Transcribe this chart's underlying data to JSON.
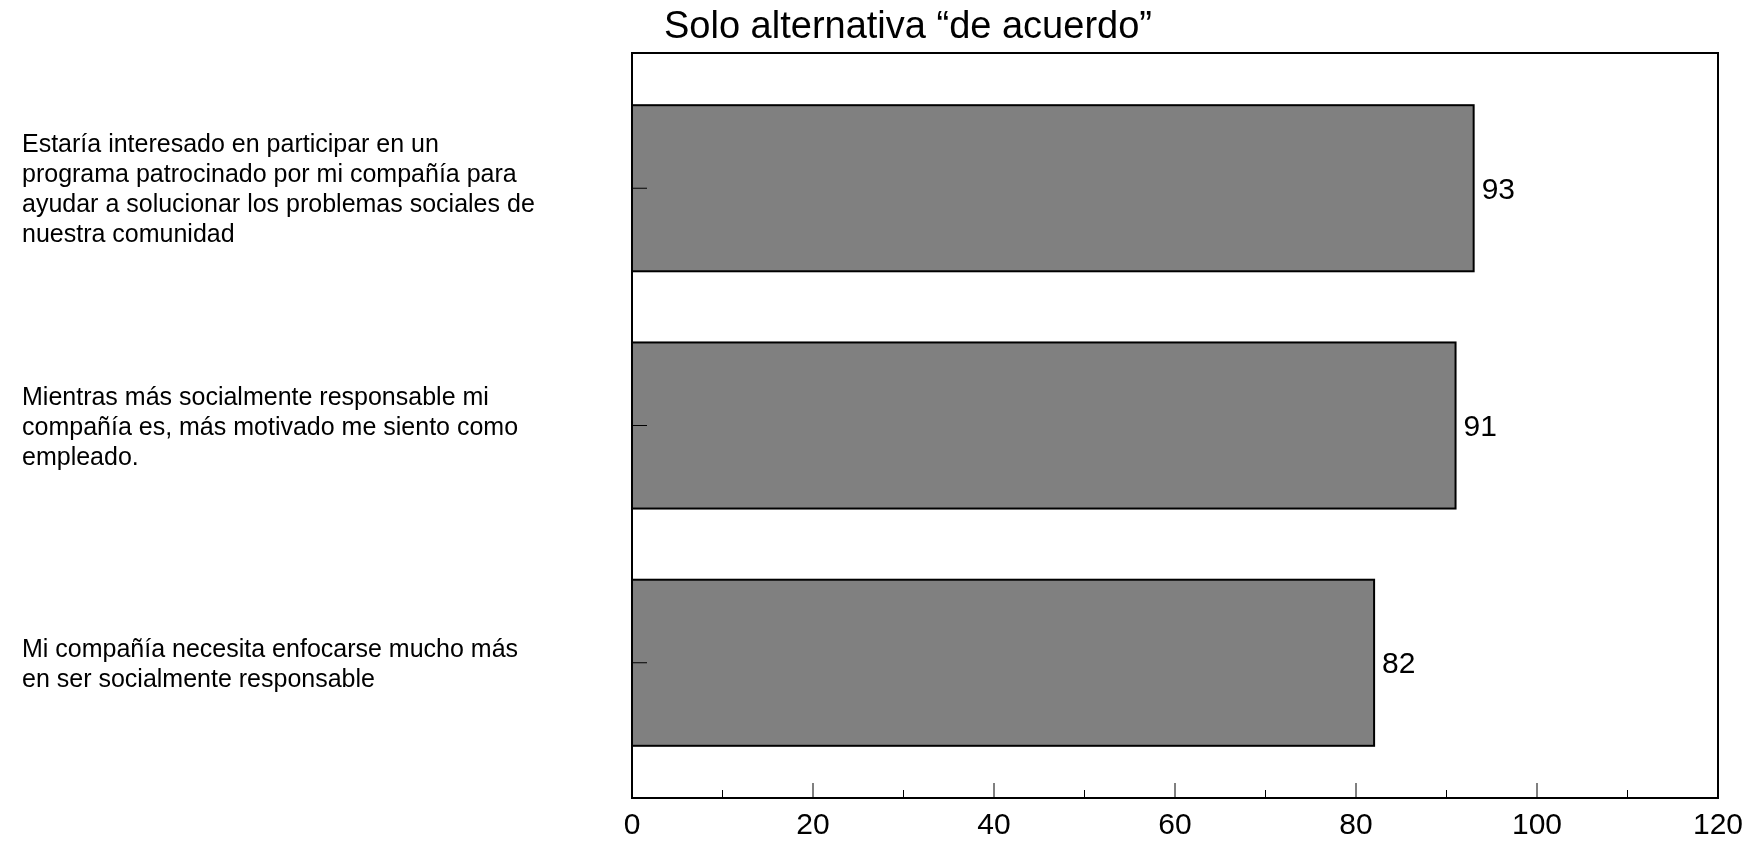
{
  "chart_data": {
    "type": "bar",
    "orientation": "horizontal",
    "title": "Solo alternativa “de acuerdo”",
    "categories": [
      "Estaría interesado en participar en un programa patrocinado por mi compañía para ayudar a solucionar los problemas sociales de nuestra comunidad",
      "Mientras más socialmente responsable mi compañía es, más motivado me siento como empleado.",
      "Mi compañía necesita enfocarse mucho más en ser socialmente responsable"
    ],
    "values": [
      93,
      91,
      82
    ],
    "color": "#808080",
    "data_labels": true,
    "xlim": [
      0,
      120
    ],
    "xticks": [
      0,
      {
        "value": 10,
        "label": null
      },
      20,
      {
        "value": 30,
        "label": null
      },
      40,
      {
        "value": 50,
        "label": null
      },
      60,
      {
        "value": 70,
        "label": null
      },
      80,
      {
        "value": 90,
        "label": null
      },
      100,
      {
        "value": 110,
        "label": null
      },
      120
    ],
    "grid": false
  }
}
